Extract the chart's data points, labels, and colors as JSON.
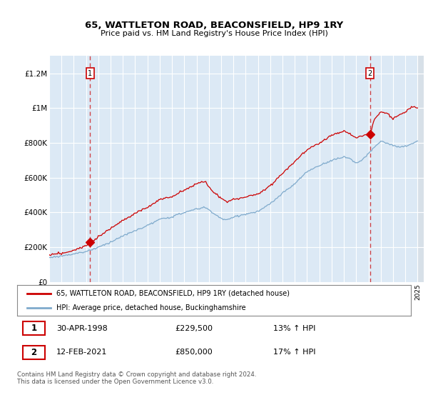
{
  "title": "65, WATTLETON ROAD, BEACONSFIELD, HP9 1RY",
  "subtitle": "Price paid vs. HM Land Registry's House Price Index (HPI)",
  "legend_line1": "65, WATTLETON ROAD, BEACONSFIELD, HP9 1RY (detached house)",
  "legend_line2": "HPI: Average price, detached house, Buckinghamshire",
  "transaction1_date": "30-APR-1998",
  "transaction1_price": "£229,500",
  "transaction1_hpi": "13% ↑ HPI",
  "transaction2_date": "12-FEB-2021",
  "transaction2_price": "£850,000",
  "transaction2_hpi": "17% ↑ HPI",
  "footer": "Contains HM Land Registry data © Crown copyright and database right 2024.\nThis data is licensed under the Open Government Licence v3.0.",
  "red_color": "#cc0000",
  "blue_color": "#7faacc",
  "bg_color": "#dce9f5",
  "ylim": [
    0,
    1300000
  ],
  "yticks": [
    0,
    200000,
    400000,
    600000,
    800000,
    1000000,
    1200000
  ],
  "ytick_labels": [
    "£0",
    "£200K",
    "£400K",
    "£600K",
    "£800K",
    "£1M",
    "£1.2M"
  ],
  "sale1_year": 1998.33,
  "sale1_price": 229500,
  "sale2_year": 2021.12,
  "sale2_price": 850000
}
